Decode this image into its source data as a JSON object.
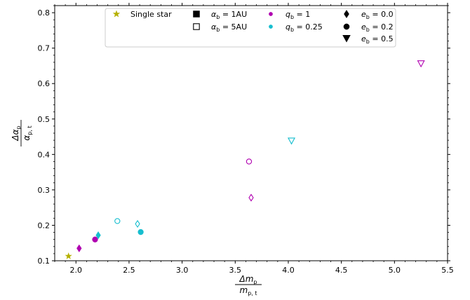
{
  "chart_data": {
    "type": "scatter",
    "title": "",
    "xlabel": {
      "num_base": "Δm",
      "num_sub": "p",
      "den_base": "m",
      "den_sub": "p, t"
    },
    "ylabel": {
      "num_base": "Δα",
      "num_sub": "p",
      "den_base": "α",
      "den_sub": "p, t"
    },
    "xlim": [
      1.8,
      5.5
    ],
    "ylim": [
      0.1,
      0.82
    ],
    "xticks": [
      "2.0",
      "2.5",
      "3.0",
      "3.5",
      "4.0",
      "4.5",
      "5.0",
      "5.5"
    ],
    "xtick_values": [
      2.0,
      2.5,
      3.0,
      3.5,
      4.0,
      4.5,
      5.0,
      5.5
    ],
    "yticks": [
      "0.1",
      "0.2",
      "0.3",
      "0.4",
      "0.5",
      "0.6",
      "0.7",
      "0.8"
    ],
    "ytick_values": [
      0.1,
      0.2,
      0.3,
      0.4,
      0.5,
      0.6,
      0.7,
      0.8
    ],
    "grid": false,
    "legend_placement": "top-center",
    "legend": [
      {
        "id": "single-star",
        "label": "Single star",
        "marker": "star",
        "fill": "filled",
        "color": "#b5b000"
      },
      {
        "id": "alpha-1au",
        "label_base": "α",
        "label_sub": "b",
        "label_rest": " = 1AU",
        "marker": "square",
        "fill": "filled",
        "color": "#000000"
      },
      {
        "id": "alpha-5au",
        "label_base": "α",
        "label_sub": "b",
        "label_rest": " = 5AU",
        "marker": "square",
        "fill": "open",
        "color": "#000000"
      },
      {
        "id": "q-1",
        "label_base": "q",
        "label_sub": "b",
        "label_rest": " = 1",
        "marker": "circle-small",
        "fill": "filled",
        "color": "#b000b0"
      },
      {
        "id": "q-025",
        "label_base": "q",
        "label_sub": "b",
        "label_rest": " = 0.25",
        "marker": "circle-small",
        "fill": "filled",
        "color": "#17becf"
      },
      {
        "id": "e-00",
        "label_base": "e",
        "label_sub": "b",
        "label_rest": " = 0.0",
        "marker": "diamond",
        "fill": "filled",
        "color": "#000000"
      },
      {
        "id": "e-02",
        "label_base": "e",
        "label_sub": "b",
        "label_rest": " = 0.2",
        "marker": "circle",
        "fill": "filled",
        "color": "#000000"
      },
      {
        "id": "e-05",
        "label_base": "e",
        "label_sub": "b",
        "label_rest": " = 0.5",
        "marker": "triangle-down",
        "fill": "filled",
        "color": "#000000"
      }
    ],
    "points": [
      {
        "x": 1.93,
        "y": 0.113,
        "marker": "star",
        "fill": "filled",
        "color": "#b5b000"
      },
      {
        "x": 2.03,
        "y": 0.135,
        "marker": "diamond",
        "fill": "filled",
        "color": "#b000b0"
      },
      {
        "x": 2.18,
        "y": 0.16,
        "marker": "circle",
        "fill": "filled",
        "color": "#b000b0"
      },
      {
        "x": 2.21,
        "y": 0.172,
        "marker": "diamond",
        "fill": "filled",
        "color": "#17becf"
      },
      {
        "x": 2.39,
        "y": 0.212,
        "marker": "circle",
        "fill": "open",
        "color": "#17becf"
      },
      {
        "x": 2.58,
        "y": 0.204,
        "marker": "diamond",
        "fill": "open",
        "color": "#17becf"
      },
      {
        "x": 2.61,
        "y": 0.181,
        "marker": "circle",
        "fill": "filled",
        "color": "#17becf"
      },
      {
        "x": 3.63,
        "y": 0.38,
        "marker": "circle",
        "fill": "open",
        "color": "#b000b0"
      },
      {
        "x": 3.65,
        "y": 0.278,
        "marker": "diamond",
        "fill": "open",
        "color": "#b000b0"
      },
      {
        "x": 4.03,
        "y": 0.438,
        "marker": "triangle-down",
        "fill": "open",
        "color": "#17becf"
      },
      {
        "x": 5.25,
        "y": 0.656,
        "marker": "triangle-down",
        "fill": "open",
        "color": "#b000b0"
      }
    ]
  }
}
